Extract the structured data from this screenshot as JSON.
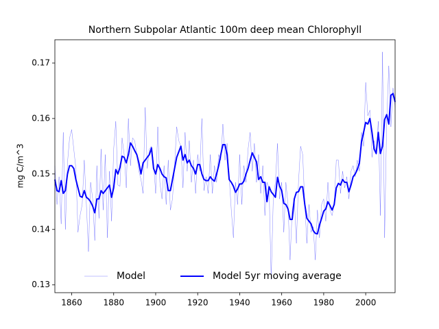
{
  "chart_data": {
    "type": "line",
    "title": "Northern Subpolar Atlantic 100m deep mean Chlorophyll",
    "y_label": "mg C/m^3",
    "x": [
      1852,
      1853,
      1854,
      1855,
      1856,
      1857,
      1858,
      1859,
      1860,
      1861,
      1862,
      1863,
      1864,
      1865,
      1866,
      1867,
      1868,
      1869,
      1870,
      1871,
      1872,
      1873,
      1874,
      1875,
      1876,
      1877,
      1878,
      1879,
      1880,
      1881,
      1882,
      1883,
      1884,
      1885,
      1886,
      1887,
      1888,
      1889,
      1890,
      1891,
      1892,
      1893,
      1894,
      1895,
      1896,
      1897,
      1898,
      1899,
      1900,
      1901,
      1902,
      1903,
      1904,
      1905,
      1906,
      1907,
      1908,
      1909,
      1910,
      1911,
      1912,
      1913,
      1914,
      1915,
      1916,
      1917,
      1918,
      1919,
      1920,
      1921,
      1922,
      1923,
      1924,
      1925,
      1926,
      1927,
      1928,
      1929,
      1930,
      1931,
      1932,
      1933,
      1934,
      1935,
      1936,
      1937,
      1938,
      1939,
      1940,
      1941,
      1942,
      1943,
      1944,
      1945,
      1946,
      1947,
      1948,
      1949,
      1950,
      1951,
      1952,
      1953,
      1954,
      1955,
      1956,
      1957,
      1958,
      1959,
      1960,
      1961,
      1962,
      1963,
      1964,
      1965,
      1966,
      1967,
      1968,
      1969,
      1970,
      1971,
      1972,
      1973,
      1974,
      1975,
      1976,
      1977,
      1978,
      1979,
      1980,
      1981,
      1982,
      1983,
      1984,
      1985,
      1986,
      1987,
      1988,
      1989,
      1990,
      1991,
      1992,
      1993,
      1994,
      1995,
      1996,
      1997,
      1998,
      1999,
      2000,
      2001,
      2002,
      2003,
      2004,
      2005,
      2006,
      2007,
      2008,
      2009,
      2010,
      2011,
      2012,
      2013,
      2014
    ],
    "series": [
      {
        "name": "Model",
        "color": "#0000ff",
        "line_width": 0.5,
        "opacity": 0.5,
        "values": [
          0.1515,
          0.1445,
          0.1495,
          0.141,
          0.1575,
          0.14,
          0.152,
          0.1565,
          0.158,
          0.1545,
          0.151,
          0.1395,
          0.1425,
          0.1445,
          0.1525,
          0.1445,
          0.136,
          0.1485,
          0.1455,
          0.138,
          0.1515,
          0.142,
          0.1545,
          0.1435,
          0.1535,
          0.1385,
          0.1505,
          0.1415,
          0.1545,
          0.1595,
          0.148,
          0.1478,
          0.1565,
          0.1535,
          0.1475,
          0.16,
          0.1515,
          0.1565,
          0.156,
          0.1535,
          0.1505,
          0.149,
          0.1465,
          0.162,
          0.151,
          0.1545,
          0.155,
          0.152,
          0.1465,
          0.1585,
          0.1485,
          0.1455,
          0.1515,
          0.1445,
          0.1525,
          0.1435,
          0.1455,
          0.1515,
          0.1585,
          0.156,
          0.155,
          0.1475,
          0.1575,
          0.1505,
          0.156,
          0.1485,
          0.1525,
          0.1465,
          0.1535,
          0.1505,
          0.16,
          0.147,
          0.1495,
          0.1465,
          0.1535,
          0.1465,
          0.1515,
          0.1485,
          0.1535,
          0.1525,
          0.159,
          0.1525,
          0.1555,
          0.1495,
          0.1435,
          0.1385,
          0.1485,
          0.1445,
          0.1535,
          0.1445,
          0.1515,
          0.1485,
          0.1545,
          0.1575,
          0.1505,
          0.1555,
          0.1485,
          0.1535,
          0.1465,
          0.1515,
          0.1425,
          0.1485,
          0.1475,
          0.131,
          0.1455,
          0.1485,
          0.1555,
          0.1455,
          0.1485,
          0.1395,
          0.1485,
          0.1445,
          0.1345,
          0.1435,
          0.1455,
          0.1375,
          0.1485,
          0.155,
          0.1535,
          0.1445,
          0.1375,
          0.1445,
          0.1395,
          0.1405,
          0.1345,
          0.1435,
          0.1385,
          0.1445,
          0.1455,
          0.1415,
          0.1485,
          0.1435,
          0.1425,
          0.1445,
          0.1525,
          0.1525,
          0.1465,
          0.1505,
          0.1475,
          0.1495,
          0.1455,
          0.1505,
          0.1515,
          0.1495,
          0.1525,
          0.1505,
          0.1575,
          0.155,
          0.1665,
          0.1605,
          0.1615,
          0.153,
          0.156,
          0.1535,
          0.1595,
          0.1425,
          0.172,
          0.1385,
          0.1595,
          0.1695,
          0.1585,
          0.1655,
          0.162
        ]
      },
      {
        "name": "Model 5yr moving average",
        "color": "#0000ff",
        "line_width": 2,
        "opacity": 1,
        "values": [
          0.149,
          0.147,
          0.1468,
          0.1488,
          0.1465,
          0.147,
          0.15,
          0.1515,
          0.1515,
          0.151,
          0.149,
          0.1475,
          0.146,
          0.1458,
          0.147,
          0.1458,
          0.1455,
          0.145,
          0.1442,
          0.143,
          0.1455,
          0.1455,
          0.147,
          0.1465,
          0.147,
          0.1475,
          0.148,
          0.1458,
          0.1475,
          0.1508,
          0.15,
          0.1512,
          0.1532,
          0.153,
          0.152,
          0.1535,
          0.1556,
          0.155,
          0.1542,
          0.1535,
          0.152,
          0.15,
          0.152,
          0.1525,
          0.153,
          0.1535,
          0.1547,
          0.151,
          0.15,
          0.1517,
          0.151,
          0.15,
          0.1495,
          0.1493,
          0.147,
          0.147,
          0.149,
          0.151,
          0.153,
          0.154,
          0.155,
          0.1525,
          0.1535,
          0.152,
          0.1525,
          0.1515,
          0.151,
          0.15,
          0.1517,
          0.1517,
          0.15,
          0.149,
          0.1488,
          0.1488,
          0.1495,
          0.149,
          0.1487,
          0.15,
          0.1515,
          0.1535,
          0.1553,
          0.1553,
          0.1535,
          0.149,
          0.1485,
          0.1478,
          0.1467,
          0.1473,
          0.1482,
          0.1482,
          0.1487,
          0.15,
          0.151,
          0.1525,
          0.1538,
          0.153,
          0.1522,
          0.149,
          0.1495,
          0.1485,
          0.1485,
          0.145,
          0.1477,
          0.1468,
          0.1463,
          0.1458,
          0.1494,
          0.1478,
          0.147,
          0.1447,
          0.1445,
          0.1437,
          0.1418,
          0.1418,
          0.1455,
          0.1467,
          0.1468,
          0.1477,
          0.1477,
          0.1445,
          0.142,
          0.1415,
          0.141,
          0.1398,
          0.1393,
          0.1392,
          0.1408,
          0.142,
          0.1433,
          0.1437,
          0.145,
          0.1443,
          0.1435,
          0.1445,
          0.1475,
          0.1483,
          0.148,
          0.149,
          0.1485,
          0.1485,
          0.1468,
          0.148,
          0.1495,
          0.15,
          0.1508,
          0.152,
          0.1558,
          0.1575,
          0.1593,
          0.159,
          0.16,
          0.1575,
          0.1545,
          0.1537,
          0.1575,
          0.1537,
          0.155,
          0.1598,
          0.1607,
          0.159,
          0.1642,
          0.1645,
          0.163
        ]
      }
    ],
    "xlim": [
      1852,
      2014
    ],
    "ylim": [
      0.1286,
      0.1742
    ],
    "xticks": [
      1860,
      1880,
      1900,
      1920,
      1940,
      1960,
      1980,
      2000
    ],
    "yticks": [
      0.13,
      0.14,
      0.15,
      0.16,
      0.17
    ],
    "legend_loc": "lower center",
    "grid": false
  }
}
